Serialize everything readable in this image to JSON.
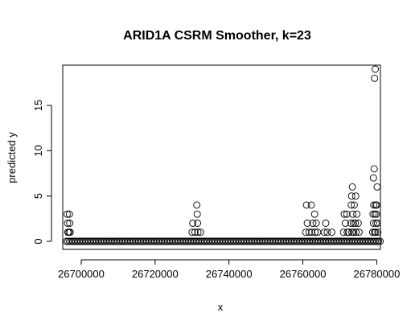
{
  "chart_data": {
    "type": "scatter",
    "title": "ARID1A CSRM Smoother, k=23",
    "xlabel": "x",
    "ylabel": "predicted y",
    "xlim": [
      26695000,
      26781000
    ],
    "ylim": [
      0,
      19
    ],
    "x_ticks": [
      26700000,
      26720000,
      26740000,
      26760000,
      26780000
    ],
    "y_ticks": [
      0,
      5,
      10,
      15
    ],
    "grid": false,
    "legend": "none",
    "baseline": {
      "y": 0,
      "x_from": 26696000,
      "x_to": 26781000
    },
    "points": [
      {
        "x": 26696200,
        "y": 3
      },
      {
        "x": 26696800,
        "y": 3
      },
      {
        "x": 26696300,
        "y": 2
      },
      {
        "x": 26696900,
        "y": 2
      },
      {
        "x": 26696400,
        "y": 1
      },
      {
        "x": 26696700,
        "y": 1
      },
      {
        "x": 26697000,
        "y": 1
      },
      {
        "x": 26730200,
        "y": 2
      },
      {
        "x": 26731500,
        "y": 2
      },
      {
        "x": 26731300,
        "y": 4
      },
      {
        "x": 26731400,
        "y": 3
      },
      {
        "x": 26730000,
        "y": 1
      },
      {
        "x": 26730800,
        "y": 1
      },
      {
        "x": 26731600,
        "y": 1
      },
      {
        "x": 26732300,
        "y": 1
      },
      {
        "x": 26761000,
        "y": 4
      },
      {
        "x": 26762300,
        "y": 4
      },
      {
        "x": 26761200,
        "y": 2
      },
      {
        "x": 26762700,
        "y": 2
      },
      {
        "x": 26763200,
        "y": 3
      },
      {
        "x": 26763600,
        "y": 2
      },
      {
        "x": 26760800,
        "y": 1
      },
      {
        "x": 26761700,
        "y": 1
      },
      {
        "x": 26762400,
        "y": 1
      },
      {
        "x": 26763300,
        "y": 1
      },
      {
        "x": 26764000,
        "y": 1
      },
      {
        "x": 26766200,
        "y": 2
      },
      {
        "x": 26765800,
        "y": 1
      },
      {
        "x": 26766600,
        "y": 1
      },
      {
        "x": 26767800,
        "y": 1
      },
      {
        "x": 26771200,
        "y": 3
      },
      {
        "x": 26771900,
        "y": 3
      },
      {
        "x": 26771500,
        "y": 2
      },
      {
        "x": 26771000,
        "y": 1
      },
      {
        "x": 26772000,
        "y": 1
      },
      {
        "x": 26772400,
        "y": 1
      },
      {
        "x": 26773400,
        "y": 6
      },
      {
        "x": 26773200,
        "y": 5
      },
      {
        "x": 26774300,
        "y": 5
      },
      {
        "x": 26773100,
        "y": 4
      },
      {
        "x": 26773900,
        "y": 4
      },
      {
        "x": 26773500,
        "y": 3
      },
      {
        "x": 26774600,
        "y": 3
      },
      {
        "x": 26773000,
        "y": 2
      },
      {
        "x": 26773700,
        "y": 2
      },
      {
        "x": 26774200,
        "y": 2
      },
      {
        "x": 26775000,
        "y": 2
      },
      {
        "x": 26773300,
        "y": 1
      },
      {
        "x": 26773800,
        "y": 1
      },
      {
        "x": 26774400,
        "y": 1
      },
      {
        "x": 26775200,
        "y": 1
      },
      {
        "x": 26779600,
        "y": 19
      },
      {
        "x": 26779400,
        "y": 18
      },
      {
        "x": 26779300,
        "y": 8
      },
      {
        "x": 26779100,
        "y": 7
      },
      {
        "x": 26780100,
        "y": 6
      },
      {
        "x": 26779200,
        "y": 4
      },
      {
        "x": 26779700,
        "y": 4
      },
      {
        "x": 26780000,
        "y": 4
      },
      {
        "x": 26779000,
        "y": 3
      },
      {
        "x": 26779500,
        "y": 3
      },
      {
        "x": 26779900,
        "y": 3
      },
      {
        "x": 26779100,
        "y": 2
      },
      {
        "x": 26779800,
        "y": 2
      },
      {
        "x": 26780200,
        "y": 2
      },
      {
        "x": 26778900,
        "y": 1
      },
      {
        "x": 26779400,
        "y": 1
      },
      {
        "x": 26779700,
        "y": 1
      },
      {
        "x": 26780300,
        "y": 1
      }
    ]
  }
}
